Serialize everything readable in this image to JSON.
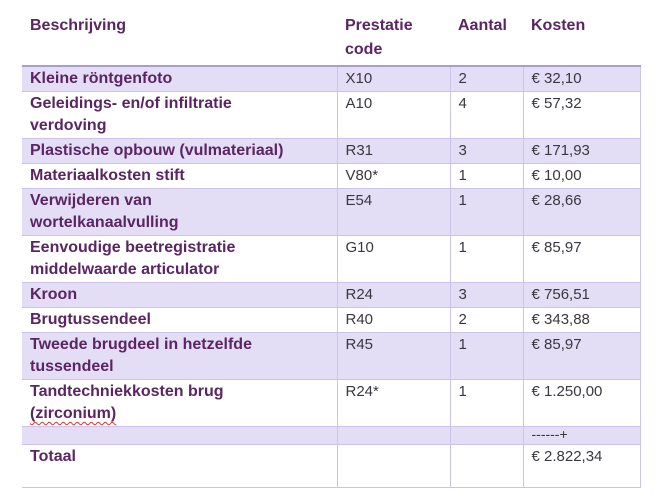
{
  "table": {
    "columns": [
      {
        "label": "Beschrijving"
      },
      {
        "label": "Prestatie code"
      },
      {
        "label": "Aantal"
      },
      {
        "label": "Kosten"
      }
    ],
    "rows": [
      {
        "kind": "item",
        "description_lines": [
          "Kleine röntgenfoto"
        ],
        "code": "X10",
        "aantal": "2",
        "kosten": "€ 32,10"
      },
      {
        "kind": "item",
        "description_lines": [
          "Geleidings- en/of infiltratie",
          "verdoving"
        ],
        "code": "A10",
        "aantal": "4",
        "kosten": "€ 57,32"
      },
      {
        "kind": "item",
        "description_lines": [
          "Plastische opbouw (vulmateriaal)"
        ],
        "code": "R31",
        "aantal": "3",
        "kosten": "€ 171,93"
      },
      {
        "kind": "item",
        "description_lines": [
          "Materiaalkosten stift"
        ],
        "code": "V80*",
        "aantal": "1",
        "kosten": "€ 10,00"
      },
      {
        "kind": "item",
        "description_lines": [
          "Verwijderen van",
          "wortelkanaalvulling"
        ],
        "code": "E54",
        "aantal": "1",
        "kosten": "€ 28,66"
      },
      {
        "kind": "item",
        "description_lines": [
          "Eenvoudige beetregistratie",
          "middelwaarde articulator"
        ],
        "code": "G10",
        "aantal": "1",
        "kosten": "€ 85,97"
      },
      {
        "kind": "item",
        "description_lines": [
          "Kroon"
        ],
        "code": "R24",
        "aantal": "3",
        "kosten": "€ 756,51"
      },
      {
        "kind": "item",
        "description_lines": [
          "Brugtussendeel"
        ],
        "code": "R40",
        "aantal": "2",
        "kosten": "€ 343,88"
      },
      {
        "kind": "item",
        "description_lines": [
          "Tweede brugdeel in hetzelfde",
          "tussendeel"
        ],
        "code": "R45",
        "aantal": "1",
        "kosten": "€ 85,97"
      },
      {
        "kind": "item",
        "description_lines": [
          "Tandtechniekkosten brug",
          "(zirconium)"
        ],
        "squiggle_line_index": 1,
        "code": "R24*",
        "aantal": "1",
        "kosten": "€ 1.250,00"
      },
      {
        "kind": "sum-separator",
        "description_lines": [],
        "code": "",
        "aantal": "",
        "kosten": "------+"
      },
      {
        "kind": "total",
        "description_lines": [
          "Totaal"
        ],
        "code": "",
        "aantal": "",
        "kosten": "€ 2.822,34"
      }
    ],
    "colors": {
      "heading_text": "#5B2564",
      "value_text": "#3A3740",
      "row_highlight": "#E3DEF5",
      "grid_line": "#CCC3EB",
      "header_separator": "#A79BDA",
      "spellcheck_underline": "#D93025"
    }
  }
}
